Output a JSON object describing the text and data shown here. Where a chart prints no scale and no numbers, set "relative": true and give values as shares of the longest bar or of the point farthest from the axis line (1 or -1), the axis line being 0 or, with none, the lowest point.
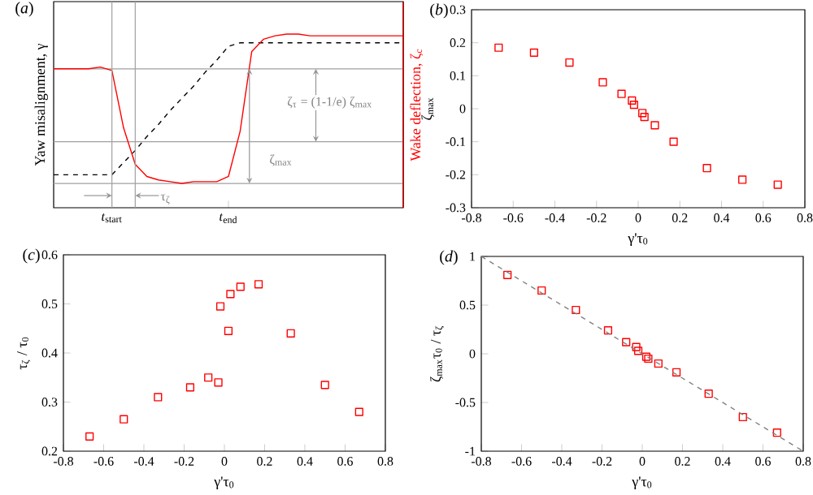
{
  "chart_data": [
    {
      "type": "line",
      "title": "(*a*)",
      "ylabel": "Yaw misalignment, γ",
      "y2label": "Wake deflection, ζ$_{c}$",
      "relative": true,
      "tick_labels": "x",
      "categories": [
        null,
        null,
        null,
        null,
        null,
        "*t*$_{start}$",
        null,
        null,
        null,
        null,
        null,
        null,
        null,
        null,
        null,
        "*t*$_{end}$",
        null,
        null,
        null,
        null,
        null,
        null,
        null,
        null,
        null,
        null,
        null,
        null,
        null,
        null,
        null
      ],
      "series": [
        {
          "color": "#000000",
          "line_style": "dashed",
          "values": [
            0.19,
            0.19,
            0.19,
            0.19,
            0.19,
            0.19,
            0.26,
            0.33,
            0.41,
            0.48,
            0.56,
            0.63,
            0.7,
            0.78,
            0.85,
            0.93,
            0.95,
            0.95,
            0.95,
            0.95,
            0.95,
            0.95,
            0.95,
            0.95,
            0.95,
            0.95,
            0.95,
            0.95,
            0.95,
            0.95,
            0.95
          ]
        },
        {
          "color": "#ff0000",
          "values": [
            0.8,
            0.8,
            0.8,
            0.8,
            0.81,
            0.79,
            0.46,
            0.25,
            0.18,
            0.16,
            0.15,
            0.14,
            0.15,
            0.15,
            0.15,
            0.18,
            0.44,
            0.9,
            0.97,
            0.99,
            1,
            1,
            0.99,
            0.99,
            0.99,
            0.99,
            0.99,
            0.99,
            0.99,
            0.99,
            0.99
          ]
        }
      ],
      "ref_lines": [
        {
          "axis": "y",
          "value": 0.8,
          "color": "#a0a0a0"
        },
        {
          "axis": "y",
          "value": 0.38,
          "color": "#a0a0a0"
        },
        {
          "axis": "y",
          "value": 0.14,
          "color": "#a0a0a0"
        }
      ],
      "annotations": [
        "ζ$_{τ}$ = (1-1/e) ζ$_{max}$",
        "ζ$_{max}$",
        "τ$_{ζ}$"
      ]
    },
    {
      "type": "scatter",
      "title": "(*b*)",
      "xlabel": "γ'τ$_{0}$",
      "ylabel": "ζ$_{max}$",
      "marker": "square",
      "color": "#ff0000",
      "xlim": [
        -0.8,
        0.8
      ],
      "ylim": [
        -0.3,
        0.3
      ],
      "xticks": [
        -0.8,
        -0.6,
        -0.4,
        -0.2,
        0,
        0.2,
        0.4,
        0.6,
        0.8
      ],
      "yticks": [
        -0.3,
        -0.2,
        -0.1,
        0,
        0.1,
        0.2,
        0.3
      ],
      "x": [
        -0.67,
        -0.5,
        -0.33,
        -0.17,
        -0.08,
        -0.03,
        -0.02,
        0.02,
        0.03,
        0.08,
        0.17,
        0.33,
        0.5,
        0.67
      ],
      "values": [
        0.185,
        0.17,
        0.14,
        0.08,
        0.045,
        0.025,
        0.012,
        -0.013,
        -0.025,
        -0.05,
        -0.1,
        -0.18,
        -0.215,
        -0.23
      ]
    },
    {
      "type": "scatter",
      "title": "(*c*)",
      "xlabel": "γ'τ$_{0}$",
      "ylabel": "τ$_{ζ}$ / τ$_{0}$",
      "marker": "square",
      "color": "#ff0000",
      "xlim": [
        -0.8,
        0.8
      ],
      "ylim": [
        0.2,
        0.6
      ],
      "xticks": [
        -0.8,
        -0.6,
        -0.4,
        -0.2,
        0,
        0.2,
        0.4,
        0.6,
        0.8
      ],
      "yticks": [
        0.2,
        0.3,
        0.4,
        0.5,
        0.6
      ],
      "x": [
        -0.67,
        -0.5,
        -0.33,
        -0.17,
        -0.08,
        -0.03,
        -0.02,
        0.02,
        0.03,
        0.08,
        0.17,
        0.33,
        0.5,
        0.67
      ],
      "values": [
        0.23,
        0.265,
        0.31,
        0.33,
        0.35,
        0.34,
        0.495,
        0.445,
        0.52,
        0.535,
        0.54,
        0.44,
        0.335,
        0.28
      ]
    },
    {
      "type": "scatter",
      "title": "(*d*)",
      "xlabel": "γ'τ$_{0}$",
      "ylabel": "ζ$_{max}$τ$_{0}$ / τ$_{ζ}$",
      "marker": "square",
      "color": "#ff0000",
      "xlim": [
        -0.8,
        0.8
      ],
      "ylim": [
        -1,
        1
      ],
      "xticks": [
        -0.8,
        -0.6,
        -0.4,
        -0.2,
        0,
        0.2,
        0.4,
        0.6,
        0.8
      ],
      "yticks": [
        -1,
        -0.5,
        0,
        0.5,
        1
      ],
      "x": [
        -0.67,
        -0.5,
        -0.33,
        -0.17,
        -0.08,
        -0.03,
        -0.02,
        0.02,
        0.03,
        0.08,
        0.17,
        0.33,
        0.5,
        0.67
      ],
      "values": [
        0.81,
        0.65,
        0.45,
        0.24,
        0.12,
        0.07,
        0.03,
        -0.03,
        -0.05,
        -0.1,
        -0.19,
        -0.41,
        -0.65,
        -0.81
      ],
      "series": [
        {
          "type": "line",
          "color": "#808080",
          "line_style": "dashed",
          "marker": "none",
          "x": [
            -0.8,
            0.8
          ],
          "values": [
            1,
            -1
          ]
        }
      ]
    }
  ]
}
